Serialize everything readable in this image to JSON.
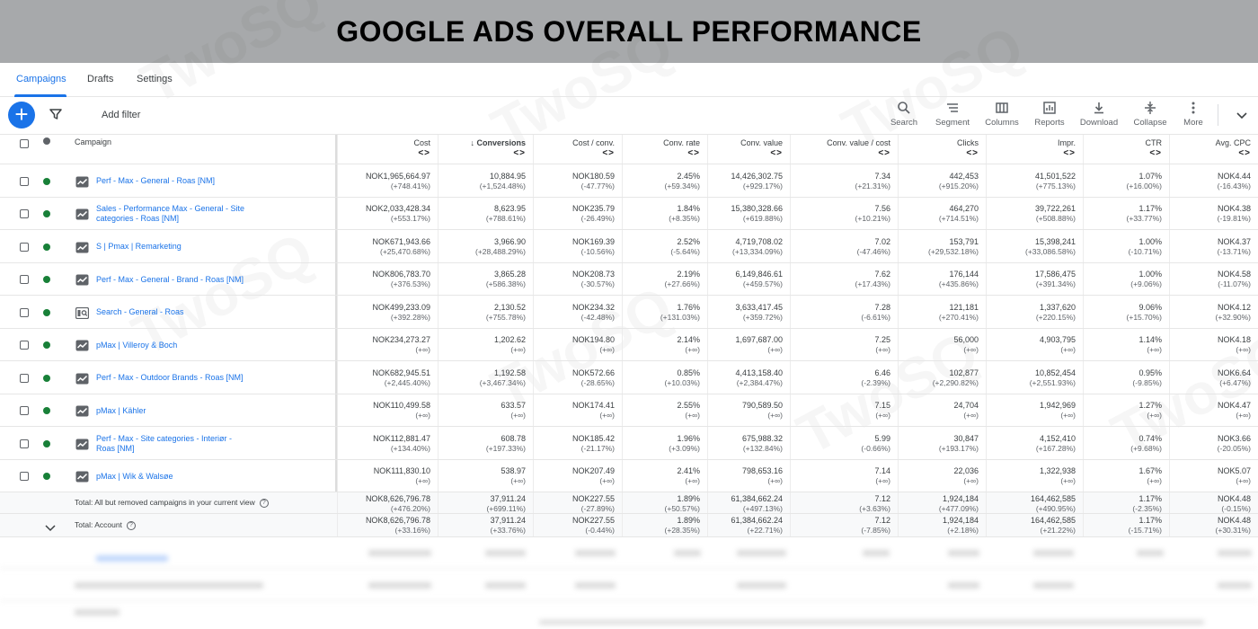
{
  "banner": {
    "title": "GOOGLE ADS OVERALL PERFORMANCE"
  },
  "watermark_text": "TwoSQ",
  "tabs": [
    {
      "label": "Campaigns",
      "active": true
    },
    {
      "label": "Drafts",
      "active": false
    },
    {
      "label": "Settings",
      "active": false
    }
  ],
  "toolbar": {
    "add_filter": "Add filter",
    "tools": [
      {
        "label": "Search",
        "icon": "search-icon"
      },
      {
        "label": "Segment",
        "icon": "segment-icon"
      },
      {
        "label": "Columns",
        "icon": "columns-icon"
      },
      {
        "label": "Reports",
        "icon": "reports-icon"
      },
      {
        "label": "Download",
        "icon": "download-icon"
      },
      {
        "label": "Collapse",
        "icon": "collapse-icon"
      },
      {
        "label": "More",
        "icon": "more-icon"
      }
    ]
  },
  "table": {
    "campaign_header": "Campaign",
    "columns": [
      {
        "label": "Cost",
        "bold": false
      },
      {
        "label": "↓ Conversions",
        "bold": true
      },
      {
        "label": "Cost / conv.",
        "bold": false
      },
      {
        "label": "Conv. rate",
        "bold": false
      },
      {
        "label": "Conv. value",
        "bold": false
      },
      {
        "label": "Conv. value / cost",
        "bold": false
      },
      {
        "label": "Clicks",
        "bold": false
      },
      {
        "label": "Impr.",
        "bold": false
      },
      {
        "label": "CTR",
        "bold": false
      },
      {
        "label": "Avg. CPC",
        "bold": false
      }
    ],
    "sorter": "<>",
    "rows": [
      {
        "name": "Perf - Max - General - Roas [NM]",
        "icon": "performance-max-icon",
        "cells": [
          [
            "NOK1,965,664.97",
            "(+748.41%)"
          ],
          [
            "10,884.95",
            "(+1,524.48%)"
          ],
          [
            "NOK180.59",
            "(-47.77%)"
          ],
          [
            "2.45%",
            "(+59.34%)"
          ],
          [
            "14,426,302.75",
            "(+929.17%)"
          ],
          [
            "7.34",
            "(+21.31%)"
          ],
          [
            "442,453",
            "(+915.20%)"
          ],
          [
            "41,501,522",
            "(+775.13%)"
          ],
          [
            "1.07%",
            "(+16.00%)"
          ],
          [
            "NOK4.44",
            "(-16.43%)"
          ]
        ]
      },
      {
        "name": "Sales - Performance Max - General - Site categories - Roas [NM]",
        "icon": "performance-max-icon",
        "cells": [
          [
            "NOK2,033,428.34",
            "(+553.17%)"
          ],
          [
            "8,623.95",
            "(+788.61%)"
          ],
          [
            "NOK235.79",
            "(-26.49%)"
          ],
          [
            "1.84%",
            "(+8.35%)"
          ],
          [
            "15,380,328.66",
            "(+619.88%)"
          ],
          [
            "7.56",
            "(+10.21%)"
          ],
          [
            "464,270",
            "(+714.51%)"
          ],
          [
            "39,722,261",
            "(+508.88%)"
          ],
          [
            "1.17%",
            "(+33.77%)"
          ],
          [
            "NOK4.38",
            "(-19.81%)"
          ]
        ]
      },
      {
        "name": "S | Pmax | Remarketing",
        "icon": "performance-max-icon",
        "cells": [
          [
            "NOK671,943.66",
            "(+25,470.68%)"
          ],
          [
            "3,966.90",
            "(+28,488.29%)"
          ],
          [
            "NOK169.39",
            "(-10.56%)"
          ],
          [
            "2.52%",
            "(-5.64%)"
          ],
          [
            "4,719,708.02",
            "(+13,334.09%)"
          ],
          [
            "7.02",
            "(-47.46%)"
          ],
          [
            "153,791",
            "(+29,532.18%)"
          ],
          [
            "15,398,241",
            "(+33,086.58%)"
          ],
          [
            "1.00%",
            "(-10.71%)"
          ],
          [
            "NOK4.37",
            "(-13.71%)"
          ]
        ]
      },
      {
        "name": "Perf - Max - General - Brand - Roas [NM]",
        "icon": "performance-max-icon",
        "cells": [
          [
            "NOK806,783.70",
            "(+376.53%)"
          ],
          [
            "3,865.28",
            "(+586.38%)"
          ],
          [
            "NOK208.73",
            "(-30.57%)"
          ],
          [
            "2.19%",
            "(+27.66%)"
          ],
          [
            "6,149,846.61",
            "(+459.57%)"
          ],
          [
            "7.62",
            "(+17.43%)"
          ],
          [
            "176,144",
            "(+435.86%)"
          ],
          [
            "17,586,475",
            "(+391.34%)"
          ],
          [
            "1.00%",
            "(+9.06%)"
          ],
          [
            "NOK4.58",
            "(-11.07%)"
          ]
        ]
      },
      {
        "name": "Search - General - Roas",
        "icon": "search-campaign-icon",
        "cells": [
          [
            "NOK499,233.09",
            "(+392.28%)"
          ],
          [
            "2,130.52",
            "(+755.78%)"
          ],
          [
            "NOK234.32",
            "(-42.48%)"
          ],
          [
            "1.76%",
            "(+131.03%)"
          ],
          [
            "3,633,417.45",
            "(+359.72%)"
          ],
          [
            "7.28",
            "(-6.61%)"
          ],
          [
            "121,181",
            "(+270.41%)"
          ],
          [
            "1,337,620",
            "(+220.15%)"
          ],
          [
            "9.06%",
            "(+15.70%)"
          ],
          [
            "NOK4.12",
            "(+32.90%)"
          ]
        ]
      },
      {
        "name": "pMax | Villeroy & Boch",
        "icon": "performance-max-icon",
        "cells": [
          [
            "NOK234,273.27",
            "(+∞)"
          ],
          [
            "1,202.62",
            "(+∞)"
          ],
          [
            "NOK194.80",
            "(+∞)"
          ],
          [
            "2.14%",
            "(+∞)"
          ],
          [
            "1,697,687.00",
            "(+∞)"
          ],
          [
            "7.25",
            "(+∞)"
          ],
          [
            "56,000",
            "(+∞)"
          ],
          [
            "4,903,795",
            "(+∞)"
          ],
          [
            "1.14%",
            "(+∞)"
          ],
          [
            "NOK4.18",
            "(+∞)"
          ]
        ]
      },
      {
        "name": "Perf - Max - Outdoor Brands - Roas [NM]",
        "icon": "performance-max-icon",
        "cells": [
          [
            "NOK682,945.51",
            "(+2,445.40%)"
          ],
          [
            "1,192.58",
            "(+3,467.34%)"
          ],
          [
            "NOK572.66",
            "(-28.65%)"
          ],
          [
            "0.85%",
            "(+10.03%)"
          ],
          [
            "4,413,158.40",
            "(+2,384.47%)"
          ],
          [
            "6.46",
            "(-2.39%)"
          ],
          [
            "102,877",
            "(+2,290.82%)"
          ],
          [
            "10,852,454",
            "(+2,551.93%)"
          ],
          [
            "0.95%",
            "(-9.85%)"
          ],
          [
            "NOK6.64",
            "(+6.47%)"
          ]
        ]
      },
      {
        "name": "pMax | Kähler",
        "icon": "performance-max-icon",
        "cells": [
          [
            "NOK110,499.58",
            "(+∞)"
          ],
          [
            "633.57",
            "(+∞)"
          ],
          [
            "NOK174.41",
            "(+∞)"
          ],
          [
            "2.55%",
            "(+∞)"
          ],
          [
            "790,589.50",
            "(+∞)"
          ],
          [
            "7.15",
            "(+∞)"
          ],
          [
            "24,704",
            "(+∞)"
          ],
          [
            "1,942,969",
            "(+∞)"
          ],
          [
            "1.27%",
            "(+∞)"
          ],
          [
            "NOK4.47",
            "(+∞)"
          ]
        ]
      },
      {
        "name": "Perf - Max - Site categories - Interiør - Roas [NM]",
        "icon": "performance-max-icon",
        "cells": [
          [
            "NOK112,881.47",
            "(+134.40%)"
          ],
          [
            "608.78",
            "(+197.33%)"
          ],
          [
            "NOK185.42",
            "(-21.17%)"
          ],
          [
            "1.96%",
            "(+3.09%)"
          ],
          [
            "675,988.32",
            "(+132.84%)"
          ],
          [
            "5.99",
            "(-0.66%)"
          ],
          [
            "30,847",
            "(+193.17%)"
          ],
          [
            "4,152,410",
            "(+167.28%)"
          ],
          [
            "0.74%",
            "(+9.68%)"
          ],
          [
            "NOK3.66",
            "(-20.05%)"
          ]
        ]
      },
      {
        "name": "pMax | Wik & Walsøe",
        "icon": "performance-max-icon",
        "cells": [
          [
            "NOK111,830.10",
            "(+∞)"
          ],
          [
            "538.97",
            "(+∞)"
          ],
          [
            "NOK207.49",
            "(+∞)"
          ],
          [
            "2.41%",
            "(+∞)"
          ],
          [
            "798,653.16",
            "(+∞)"
          ],
          [
            "7.14",
            "(+∞)"
          ],
          [
            "22,036",
            "(+∞)"
          ],
          [
            "1,322,938",
            "(+∞)"
          ],
          [
            "1.67%",
            "(+∞)"
          ],
          [
            "NOK5.07",
            "(+∞)"
          ]
        ]
      }
    ],
    "totals": [
      {
        "label": "Total: All but removed campaigns in your current view",
        "cells": [
          [
            "NOK8,626,796.78",
            "(+476.20%)"
          ],
          [
            "37,911.24",
            "(+699.11%)"
          ],
          [
            "NOK227.55",
            "(-27.89%)"
          ],
          [
            "1.89%",
            "(+50.57%)"
          ],
          [
            "61,384,662.24",
            "(+497.13%)"
          ],
          [
            "7.12",
            "(+3.63%)"
          ],
          [
            "1,924,184",
            "(+477.09%)"
          ],
          [
            "164,462,585",
            "(+490.95%)"
          ],
          [
            "1.17%",
            "(-2.35%)"
          ],
          [
            "NOK4.48",
            "(-0.15%)"
          ]
        ]
      },
      {
        "label": "Total: Account",
        "cells": [
          [
            "NOK8,626,796.78",
            "(+33.16%)"
          ],
          [
            "37,911.24",
            "(+33.76%)"
          ],
          [
            "NOK227.55",
            "(-0.44%)"
          ],
          [
            "1.89%",
            "(+28.35%)"
          ],
          [
            "61,384,662.24",
            "(+22.71%)"
          ],
          [
            "7.12",
            "(-7.85%)"
          ],
          [
            "1,924,184",
            "(+2.18%)"
          ],
          [
            "164,462,585",
            "(+21.22%)"
          ],
          [
            "1.17%",
            "(-15.71%)"
          ],
          [
            "NOK4.48",
            "(+30.31%)"
          ]
        ]
      }
    ]
  },
  "colors": {
    "accent": "#1a73e8",
    "status_enabled": "#188038",
    "banner": "#a7a9ab"
  }
}
